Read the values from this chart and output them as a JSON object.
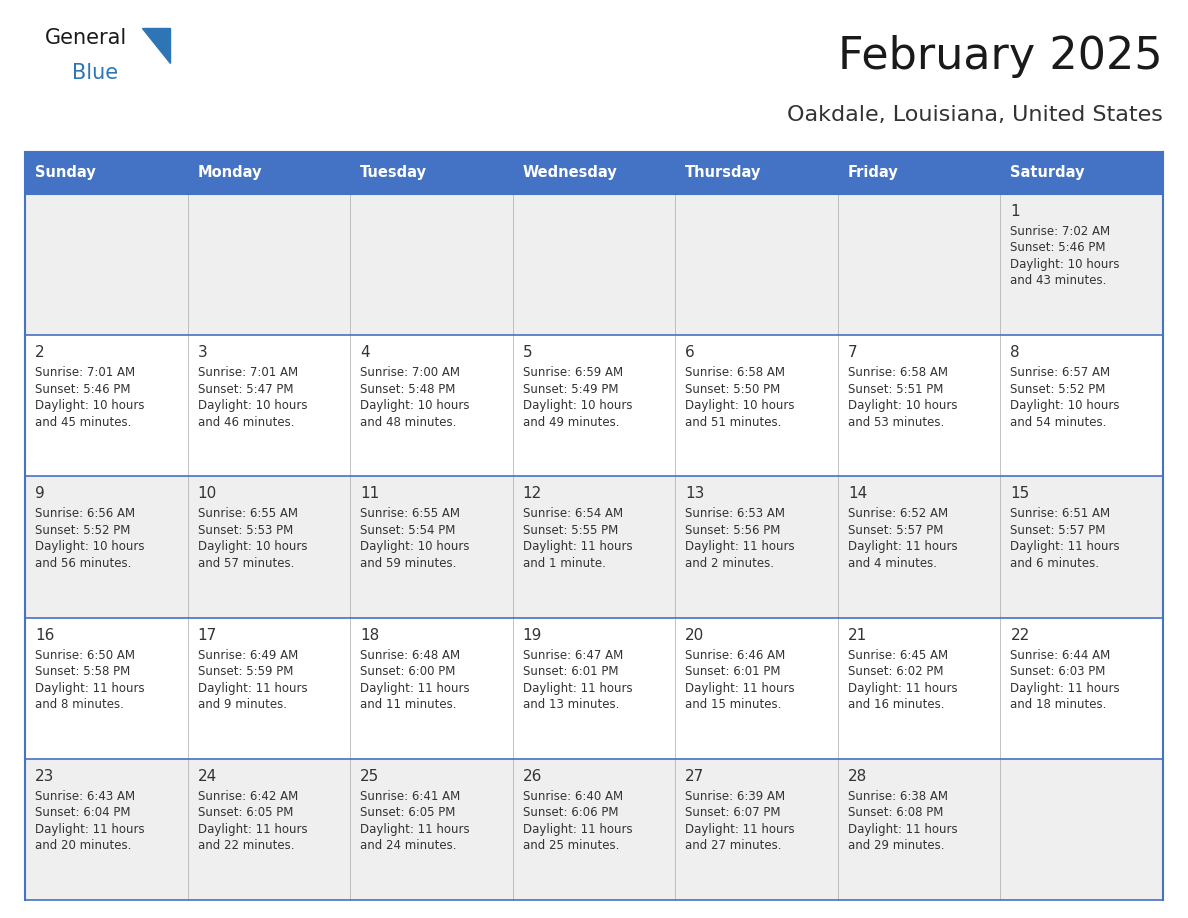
{
  "title": "February 2025",
  "subtitle": "Oakdale, Louisiana, United States",
  "days_of_week": [
    "Sunday",
    "Monday",
    "Tuesday",
    "Wednesday",
    "Thursday",
    "Friday",
    "Saturday"
  ],
  "header_bg": "#4472C4",
  "header_text": "#FFFFFF",
  "row_bg_colors": [
    "#EFEFEF",
    "#FFFFFF",
    "#EFEFEF",
    "#FFFFFF",
    "#EFEFEF"
  ],
  "border_color": "#4472C4",
  "cell_border_color": "#C0C0C0",
  "text_color": "#333333",
  "day_num_color": "#333333",
  "title_color": "#1a1a1a",
  "subtitle_color": "#333333",
  "logo_general_color": "#1a1a1a",
  "logo_blue_color": "#2E75B6",
  "calendar": [
    [
      {
        "day": 0,
        "info": ""
      },
      {
        "day": 0,
        "info": ""
      },
      {
        "day": 0,
        "info": ""
      },
      {
        "day": 0,
        "info": ""
      },
      {
        "day": 0,
        "info": ""
      },
      {
        "day": 0,
        "info": ""
      },
      {
        "day": 1,
        "info": "Sunrise: 7:02 AM\nSunset: 5:46 PM\nDaylight: 10 hours\nand 43 minutes."
      }
    ],
    [
      {
        "day": 2,
        "info": "Sunrise: 7:01 AM\nSunset: 5:46 PM\nDaylight: 10 hours\nand 45 minutes."
      },
      {
        "day": 3,
        "info": "Sunrise: 7:01 AM\nSunset: 5:47 PM\nDaylight: 10 hours\nand 46 minutes."
      },
      {
        "day": 4,
        "info": "Sunrise: 7:00 AM\nSunset: 5:48 PM\nDaylight: 10 hours\nand 48 minutes."
      },
      {
        "day": 5,
        "info": "Sunrise: 6:59 AM\nSunset: 5:49 PM\nDaylight: 10 hours\nand 49 minutes."
      },
      {
        "day": 6,
        "info": "Sunrise: 6:58 AM\nSunset: 5:50 PM\nDaylight: 10 hours\nand 51 minutes."
      },
      {
        "day": 7,
        "info": "Sunrise: 6:58 AM\nSunset: 5:51 PM\nDaylight: 10 hours\nand 53 minutes."
      },
      {
        "day": 8,
        "info": "Sunrise: 6:57 AM\nSunset: 5:52 PM\nDaylight: 10 hours\nand 54 minutes."
      }
    ],
    [
      {
        "day": 9,
        "info": "Sunrise: 6:56 AM\nSunset: 5:52 PM\nDaylight: 10 hours\nand 56 minutes."
      },
      {
        "day": 10,
        "info": "Sunrise: 6:55 AM\nSunset: 5:53 PM\nDaylight: 10 hours\nand 57 minutes."
      },
      {
        "day": 11,
        "info": "Sunrise: 6:55 AM\nSunset: 5:54 PM\nDaylight: 10 hours\nand 59 minutes."
      },
      {
        "day": 12,
        "info": "Sunrise: 6:54 AM\nSunset: 5:55 PM\nDaylight: 11 hours\nand 1 minute."
      },
      {
        "day": 13,
        "info": "Sunrise: 6:53 AM\nSunset: 5:56 PM\nDaylight: 11 hours\nand 2 minutes."
      },
      {
        "day": 14,
        "info": "Sunrise: 6:52 AM\nSunset: 5:57 PM\nDaylight: 11 hours\nand 4 minutes."
      },
      {
        "day": 15,
        "info": "Sunrise: 6:51 AM\nSunset: 5:57 PM\nDaylight: 11 hours\nand 6 minutes."
      }
    ],
    [
      {
        "day": 16,
        "info": "Sunrise: 6:50 AM\nSunset: 5:58 PM\nDaylight: 11 hours\nand 8 minutes."
      },
      {
        "day": 17,
        "info": "Sunrise: 6:49 AM\nSunset: 5:59 PM\nDaylight: 11 hours\nand 9 minutes."
      },
      {
        "day": 18,
        "info": "Sunrise: 6:48 AM\nSunset: 6:00 PM\nDaylight: 11 hours\nand 11 minutes."
      },
      {
        "day": 19,
        "info": "Sunrise: 6:47 AM\nSunset: 6:01 PM\nDaylight: 11 hours\nand 13 minutes."
      },
      {
        "day": 20,
        "info": "Sunrise: 6:46 AM\nSunset: 6:01 PM\nDaylight: 11 hours\nand 15 minutes."
      },
      {
        "day": 21,
        "info": "Sunrise: 6:45 AM\nSunset: 6:02 PM\nDaylight: 11 hours\nand 16 minutes."
      },
      {
        "day": 22,
        "info": "Sunrise: 6:44 AM\nSunset: 6:03 PM\nDaylight: 11 hours\nand 18 minutes."
      }
    ],
    [
      {
        "day": 23,
        "info": "Sunrise: 6:43 AM\nSunset: 6:04 PM\nDaylight: 11 hours\nand 20 minutes."
      },
      {
        "day": 24,
        "info": "Sunrise: 6:42 AM\nSunset: 6:05 PM\nDaylight: 11 hours\nand 22 minutes."
      },
      {
        "day": 25,
        "info": "Sunrise: 6:41 AM\nSunset: 6:05 PM\nDaylight: 11 hours\nand 24 minutes."
      },
      {
        "day": 26,
        "info": "Sunrise: 6:40 AM\nSunset: 6:06 PM\nDaylight: 11 hours\nand 25 minutes."
      },
      {
        "day": 27,
        "info": "Sunrise: 6:39 AM\nSunset: 6:07 PM\nDaylight: 11 hours\nand 27 minutes."
      },
      {
        "day": 28,
        "info": "Sunrise: 6:38 AM\nSunset: 6:08 PM\nDaylight: 11 hours\nand 29 minutes."
      },
      {
        "day": 0,
        "info": ""
      }
    ]
  ]
}
